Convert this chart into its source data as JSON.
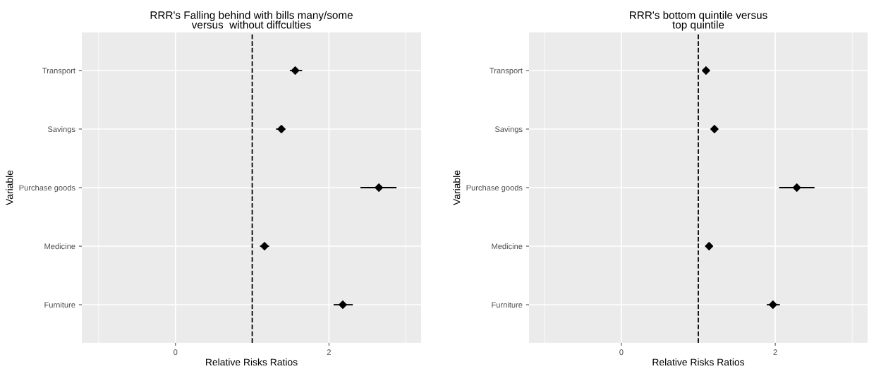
{
  "chart_data": [
    {
      "type": "scatter",
      "orientation": "horizontal",
      "title": "RRR's Falling behind with bills many/some\nversus  without diffculties",
      "xlabel": "Relative Risks Ratios",
      "ylabel": "Variable",
      "categories": [
        "Transport",
        "Savings",
        "Purchase goods",
        "Medicine",
        "Furniture"
      ],
      "values": [
        1.56,
        1.38,
        2.65,
        1.16,
        2.18
      ],
      "errors": [
        [
          1.49,
          1.65
        ],
        [
          1.31,
          1.43
        ],
        [
          2.41,
          2.88
        ],
        [
          1.1,
          1.22
        ],
        [
          2.06,
          2.31
        ]
      ],
      "color": "#000000",
      "marker": "diamond",
      "xlim": [
        -1.22,
        3.2
      ],
      "xticks": [
        0,
        2
      ],
      "grid": true,
      "ref_lines": [
        {
          "axis": "x",
          "value": 1,
          "line_style": "dashed",
          "color": "#000000"
        }
      ]
    },
    {
      "type": "scatter",
      "orientation": "horizontal",
      "title": "RRR's bottom quintile versus\ntop quintile",
      "xlabel": "Relative Risks Ratios",
      "ylabel": "Variable",
      "categories": [
        "Transport",
        "Savings",
        "Purchase goods",
        "Medicine",
        "Furniture"
      ],
      "values": [
        1.1,
        1.21,
        2.28,
        1.14,
        1.97
      ],
      "errors": [
        [
          1.07,
          1.13
        ],
        [
          1.18,
          1.24
        ],
        [
          2.05,
          2.51
        ],
        [
          1.11,
          1.17
        ],
        [
          1.89,
          2.06
        ]
      ],
      "color": "#000000",
      "marker": "diamond",
      "xlim": [
        -1.2,
        3.2
      ],
      "xticks": [
        0,
        2
      ],
      "grid": true,
      "ref_lines": [
        {
          "axis": "x",
          "value": 1,
          "line_style": "dashed",
          "color": "#000000"
        }
      ]
    }
  ]
}
